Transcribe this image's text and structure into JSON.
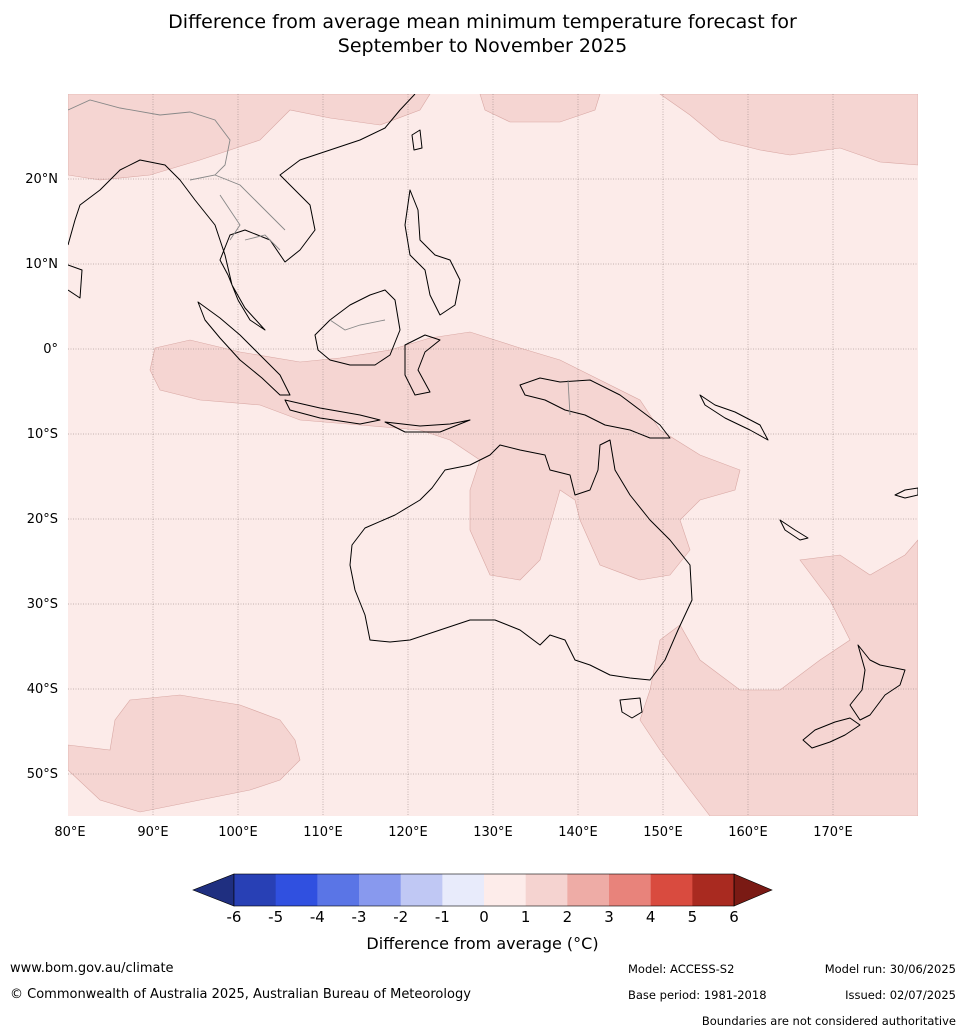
{
  "title_line1": "Difference from average mean minimum temperature forecast for",
  "title_line2": "September to November 2025",
  "map": {
    "lon_range": [
      80,
      180
    ],
    "lat_range": [
      -55,
      30
    ],
    "lat_labels": [
      "20°N",
      "10°N",
      "0°",
      "10°S",
      "20°S",
      "30°S",
      "40°S",
      "50°S"
    ],
    "lon_labels": [
      "80°E",
      "90°E",
      "100°E",
      "110°E",
      "120°E",
      "130°E",
      "140°E",
      "150°E",
      "160°E",
      "170°E"
    ],
    "regions": [
      {
        "category": "1 to 2",
        "area": "north-west Pacific and South China Sea margin"
      },
      {
        "category": "1 to 2",
        "area": "Indonesia, New Guinea and northern Australia"
      },
      {
        "category": "1 to 2",
        "area": "Tasman Sea and New Zealand"
      },
      {
        "category": "1 to 2",
        "area": "southern Indian Ocean"
      },
      {
        "category": "0 to 1",
        "area": "remainder of domain"
      }
    ]
  },
  "colorbar": {
    "ticks": [
      "-6",
      "-5",
      "-4",
      "-3",
      "-2",
      "-1",
      "0",
      "1",
      "2",
      "3",
      "4",
      "5",
      "6"
    ],
    "colors": [
      "#1f2f80",
      "#2840b5",
      "#3050e0",
      "#5a75e6",
      "#8899ee",
      "#c0c8f4",
      "#e8ebfb",
      "#fdecea",
      "#f5d3d0",
      "#eeaca6",
      "#e8837b",
      "#d94b3f",
      "#a92a20",
      "#7a1a14"
    ],
    "label": "Difference from average ($^\\circ$C)",
    "label_display": "Difference from average (°C)"
  },
  "footer": {
    "website": "www.bom.gov.au/climate",
    "copyright": "© Commonwealth of Australia 2025, Australian Bureau of Meteorology",
    "model": "Model: ACCESS-S2",
    "base_period": "Base period: 1981-2018",
    "model_run": "Model run: 30/06/2025",
    "issued": "Issued: 02/07/2025",
    "disclaimer": "Boundaries are not considered authoritative"
  }
}
